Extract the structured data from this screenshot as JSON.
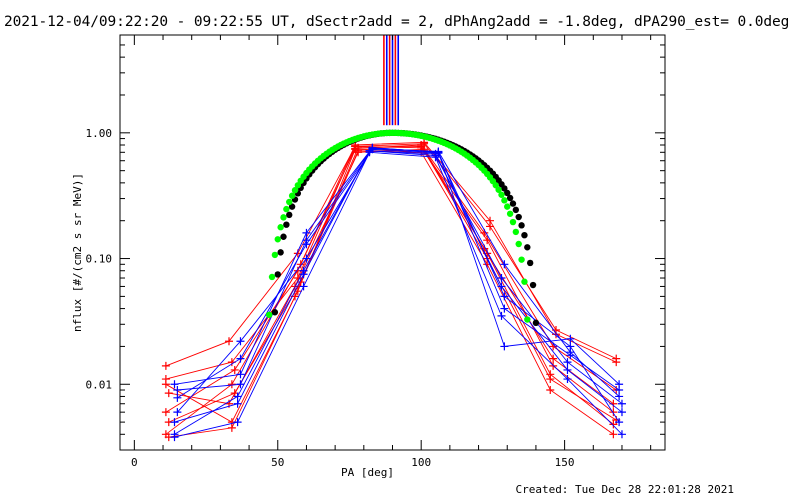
{
  "header": {
    "title": "2021-12-04/09:22:20 - 09:22:55 UT, dSectr2add = 2, dPhAng2add = -1.8deg, dPA290_est=  0.0deg"
  },
  "footer": {
    "created": "Created: Tue Dec 28 22:01:28 2021"
  },
  "chart_data": {
    "type": "line",
    "title": "2021-12-04/09:22:20 - 09:22:55 UT, dSectr2add = 2, dPhAng2add = -1.8deg, dPA290_est=  0.0deg",
    "xlabel": "PA [deg]",
    "ylabel": "nflux [#/(cm2 s sr MeV)]",
    "xlim": [
      -5,
      185
    ],
    "ylim": [
      0.003,
      6
    ],
    "ylog": true,
    "xticks": [
      0,
      50,
      100,
      150
    ],
    "xtick_labels": [
      "0",
      "50",
      "100",
      "150"
    ],
    "yticks": [
      0.01,
      0.1,
      1.0
    ],
    "ytick_labels": [
      "0.01",
      "0.10",
      "1.00"
    ],
    "legend": "none",
    "colors": {
      "red": "#ff0000",
      "blue": "#0000ff",
      "green": "#00ff00",
      "black": "#000000"
    },
    "vertical_lines": {
      "x": [
        87,
        88,
        89,
        90,
        91,
        92
      ],
      "colors": [
        "red",
        "blue",
        "red",
        "blue",
        "red",
        "blue"
      ]
    },
    "fit_curves": [
      {
        "name": "fit-black",
        "color": "black",
        "x0": 90,
        "x_zero": [
          48,
          141
        ],
        "y_peak": 1.0
      },
      {
        "name": "fit-green",
        "color": "green",
        "x0": 90,
        "x_zero": [
          46,
          138
        ],
        "y_peak": 1.0
      }
    ],
    "series": [
      {
        "color": "red",
        "pa": [
          11,
          34,
          57,
          77,
          100,
          123,
          146,
          167
        ],
        "values": [
          0.011,
          0.015,
          0.07,
          0.78,
          0.76,
          0.14,
          0.014,
          0.006
        ]
      },
      {
        "color": "red",
        "pa": [
          11,
          34,
          58,
          77,
          101,
          124,
          147,
          168
        ],
        "values": [
          0.004,
          0.01,
          0.09,
          0.8,
          0.84,
          0.2,
          0.025,
          0.015
        ]
      },
      {
        "color": "red",
        "pa": [
          12,
          33,
          56,
          78,
          101,
          123,
          145,
          167
        ],
        "values": [
          0.0085,
          0.007,
          0.06,
          0.7,
          0.74,
          0.11,
          0.012,
          0.0048
        ]
      },
      {
        "color": "red",
        "pa": [
          11,
          35,
          57,
          77,
          100,
          122,
          146,
          168
        ],
        "values": [
          0.006,
          0.013,
          0.08,
          0.75,
          0.8,
          0.16,
          0.02,
          0.009
        ]
      },
      {
        "color": "red",
        "pa": [
          12,
          34,
          56,
          78,
          100,
          123,
          145,
          167
        ],
        "values": [
          0.0038,
          0.0045,
          0.05,
          0.72,
          0.7,
          0.09,
          0.009,
          0.004
        ]
      },
      {
        "color": "red",
        "pa": [
          11,
          33,
          57,
          77,
          101,
          124,
          147,
          168
        ],
        "values": [
          0.014,
          0.022,
          0.11,
          0.78,
          0.82,
          0.18,
          0.027,
          0.016
        ]
      },
      {
        "color": "red",
        "pa": [
          12,
          35,
          58,
          78,
          100,
          122,
          146,
          167
        ],
        "values": [
          0.005,
          0.0085,
          0.065,
          0.76,
          0.78,
          0.12,
          0.016,
          0.007
        ]
      },
      {
        "color": "red",
        "pa": [
          11,
          34,
          57,
          77,
          101,
          123,
          145,
          168
        ],
        "values": [
          0.01,
          0.005,
          0.055,
          0.74,
          0.72,
          0.1,
          0.011,
          0.0052
        ]
      },
      {
        "color": "blue",
        "pa": [
          14,
          37,
          60,
          83,
          106,
          129,
          152,
          169
        ],
        "values": [
          0.01,
          0.012,
          0.16,
          0.76,
          0.7,
          0.02,
          0.023,
          0.01
        ]
      },
      {
        "color": "blue",
        "pa": [
          14,
          36,
          59,
          82,
          105,
          128,
          151,
          170
        ],
        "values": [
          0.004,
          0.008,
          0.08,
          0.72,
          0.66,
          0.07,
          0.015,
          0.007
        ]
      },
      {
        "color": "blue",
        "pa": [
          15,
          37,
          60,
          83,
          106,
          129,
          152,
          169
        ],
        "values": [
          0.0078,
          0.016,
          0.13,
          0.74,
          0.69,
          0.05,
          0.02,
          0.005
        ]
      },
      {
        "color": "blue",
        "pa": [
          14,
          36,
          59,
          82,
          105,
          128,
          151,
          170
        ],
        "values": [
          0.0038,
          0.005,
          0.06,
          0.7,
          0.64,
          0.035,
          0.011,
          0.004
        ]
      },
      {
        "color": "blue",
        "pa": [
          15,
          37,
          60,
          83,
          106,
          129,
          152,
          169
        ],
        "values": [
          0.006,
          0.022,
          0.1,
          0.75,
          0.71,
          0.09,
          0.018,
          0.008
        ]
      },
      {
        "color": "blue",
        "pa": [
          14,
          36,
          59,
          82,
          105,
          128,
          151,
          170
        ],
        "values": [
          0.005,
          0.007,
          0.075,
          0.72,
          0.68,
          0.06,
          0.013,
          0.006
        ]
      },
      {
        "color": "blue",
        "pa": [
          15,
          37,
          60,
          83,
          106,
          129,
          152,
          169
        ],
        "values": [
          0.009,
          0.01,
          0.14,
          0.76,
          0.7,
          0.04,
          0.017,
          0.009
        ]
      }
    ]
  }
}
